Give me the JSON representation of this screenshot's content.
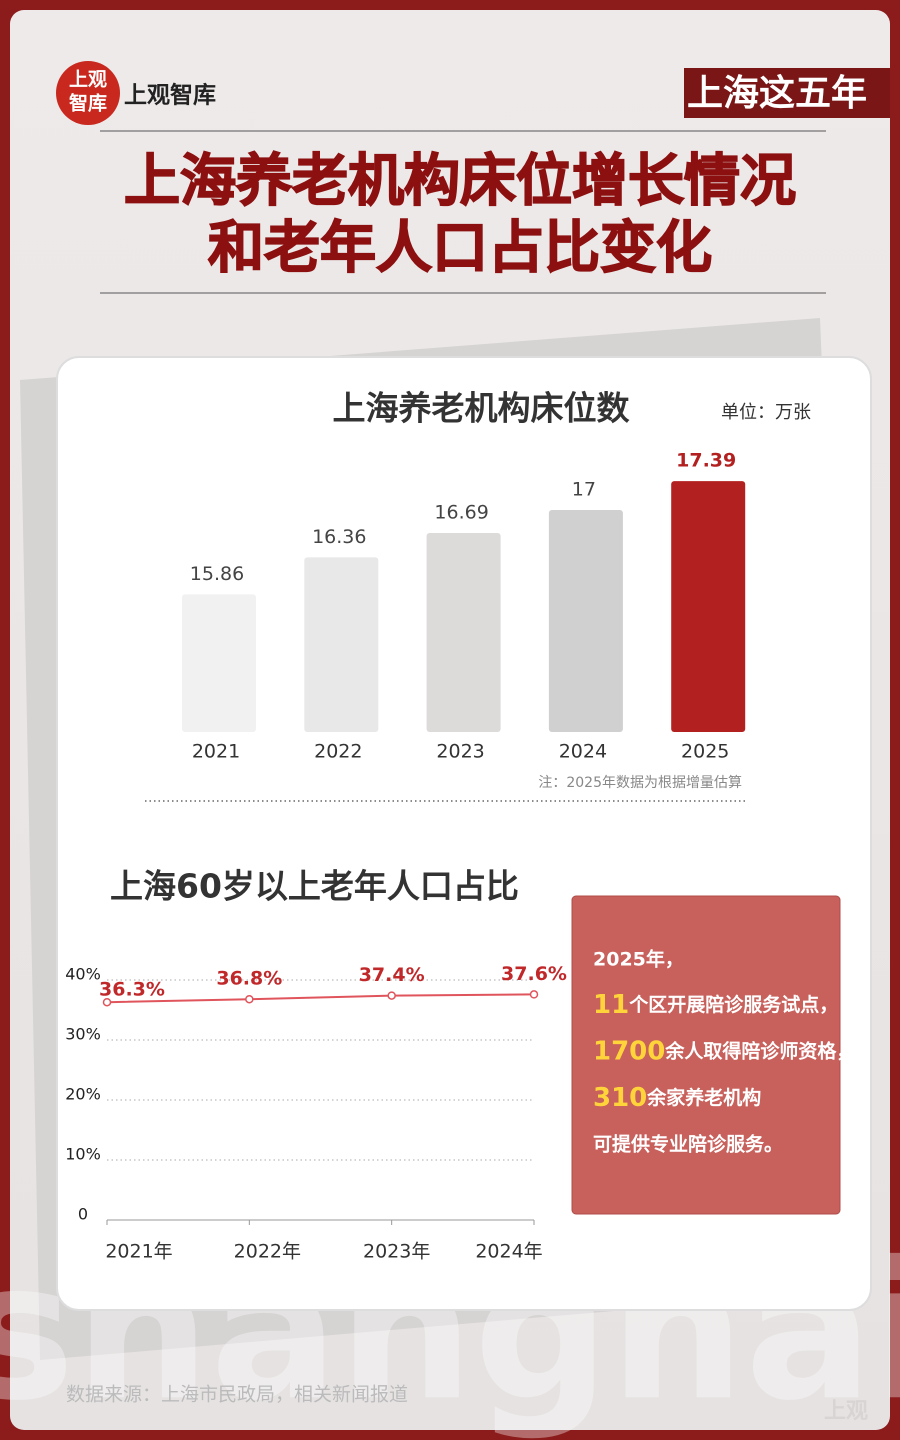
{
  "header": {
    "logo_top": "上观",
    "logo_bottom": "智库",
    "brand": "上观智库",
    "tag": "上海这五年",
    "title": [
      "上海养老机构床位增长情况",
      "和老年人口占比变化"
    ]
  },
  "chart_data": [
    {
      "type": "bar",
      "title": "上海养老机构床位数",
      "unit": "单位：万张",
      "categories": [
        "2021",
        "2022",
        "2023",
        "2024",
        "2025"
      ],
      "values": [
        15.86,
        16.36,
        16.69,
        17,
        17.39
      ],
      "colors": [
        "#f1f1f1",
        "#e8e8e8",
        "#dddada",
        "#d0d0d0",
        "#b32020"
      ],
      "label_colors": [
        "#444444",
        "#444444",
        "#444444",
        "#444444",
        "#b32020"
      ],
      "ylim": [
        14,
        17.5
      ],
      "note": "注：2025年数据为根据增量估算"
    },
    {
      "type": "line",
      "title": "上海60岁以上老年人口占比",
      "categories": [
        "2021年",
        "2022年",
        "2023年",
        "2024年"
      ],
      "values": [
        36.3,
        36.8,
        37.4,
        37.6
      ],
      "value_labels": [
        "36.3%",
        "36.8%",
        "37.4%",
        "37.6%"
      ],
      "color": "#e0545c",
      "label_color": "#c0282a",
      "ylim": [
        0,
        40
      ],
      "yticks": [
        0,
        {
          "value": 10,
          "label": "10%"
        },
        {
          "value": 20,
          "label": "20%"
        },
        {
          "value": 30,
          "label": "30%"
        },
        {
          "value": 40,
          "label": "40%"
        }
      ],
      "grid": true
    }
  ],
  "info": {
    "lead": "2025年，",
    "items": [
      {
        "number": "11",
        "text": "个区开展陪诊服务试点，"
      },
      {
        "number": "1700",
        "text": "余人取得陪诊师资格，"
      },
      {
        "number": "310",
        "text": "余家养老机构"
      }
    ],
    "closing": "可提供专业陪诊服务。"
  },
  "footer": {
    "source": "数据来源：上海市民政局，相关新闻报道",
    "watermark": "shanghai",
    "mark": "上观"
  }
}
